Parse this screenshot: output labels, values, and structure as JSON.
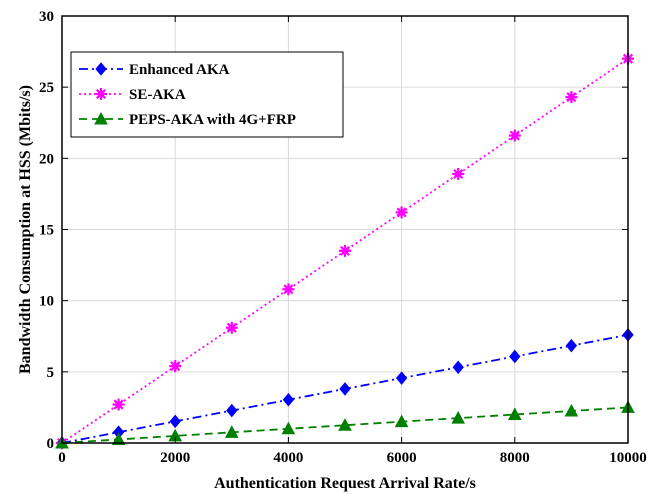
{
  "chart_data": {
    "type": "line",
    "title": "",
    "xlabel": "Authentication Request Arrival Rate/s",
    "ylabel": "Bandwidth Consumption at HSS (Mbits/s)",
    "xlim": [
      0,
      10000
    ],
    "ylim": [
      0,
      30
    ],
    "xticks": [
      0,
      2000,
      4000,
      6000,
      8000,
      10000
    ],
    "yticks": [
      0,
      5,
      10,
      15,
      20,
      25,
      30
    ],
    "grid": true,
    "legend_position": "top-left",
    "x": [
      0,
      1000,
      2000,
      3000,
      4000,
      5000,
      6000,
      7000,
      8000,
      9000,
      10000
    ],
    "series": [
      {
        "name": "Enhanced AKA",
        "color": "#0000ff",
        "line_style": "dash-dot",
        "marker": "diamond",
        "values": [
          0,
          0.76,
          1.52,
          2.28,
          3.04,
          3.8,
          4.56,
          5.32,
          6.08,
          6.84,
          7.6
        ]
      },
      {
        "name": "SE-AKA",
        "color": "#ff00ff",
        "line_style": "dotted",
        "marker": "star",
        "values": [
          0,
          2.7,
          5.4,
          8.1,
          10.8,
          13.5,
          16.2,
          18.9,
          21.6,
          24.3,
          27.0
        ]
      },
      {
        "name": "PEPS-AKA with 4G+FRP",
        "color": "#008000",
        "line_style": "dashed",
        "marker": "triangle",
        "values": [
          0,
          0.25,
          0.5,
          0.75,
          1.0,
          1.25,
          1.5,
          1.75,
          2.0,
          2.25,
          2.5
        ]
      }
    ]
  }
}
